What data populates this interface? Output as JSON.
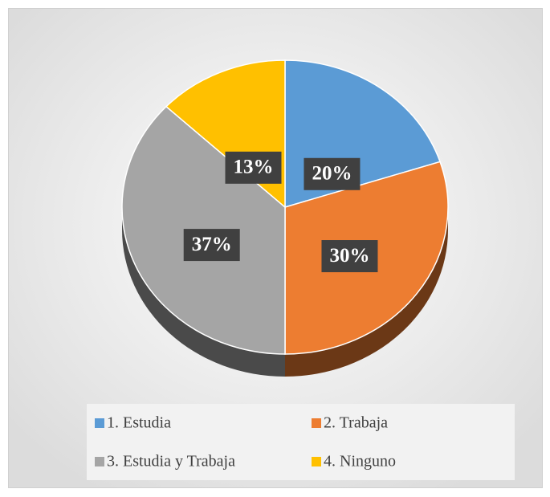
{
  "chart_data": {
    "type": "pie",
    "categories": [
      "1. Estudia",
      "2. Trabaja",
      "3. Estudia y Trabaja",
      "4. Ninguno"
    ],
    "values": [
      20,
      30,
      37,
      13
    ],
    "value_labels": [
      "20%",
      "30%",
      "37%",
      "13%"
    ],
    "colors": [
      "#5b9bd5",
      "#ed7d31",
      "#a5a5a5",
      "#ffc000"
    ],
    "legend": "bottom"
  }
}
